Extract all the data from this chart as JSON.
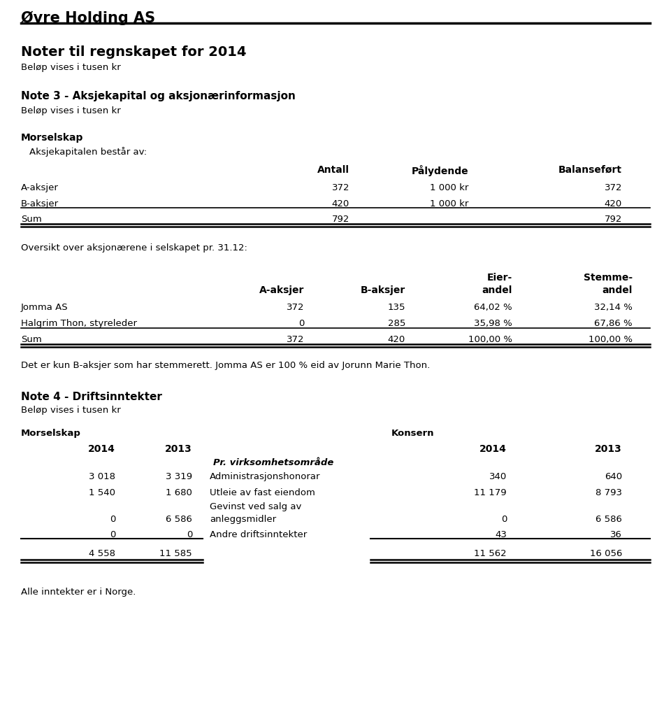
{
  "title": "Øvre Holding AS",
  "subtitle1": "Noter til regnskapet for 2014",
  "subtitle2": "Beløp vises i tusen kr",
  "note3_title": "Note 3 - Aksjekapital og aksjonærinformasjon",
  "note3_subtitle": "Beløp vises i tusen kr",
  "morselskap_label": "Morselskap",
  "aksjekapital_text": "Aksjekapitalen består av:",
  "table1_headers": [
    "",
    "Antall",
    "Pålydende",
    "Balanseført"
  ],
  "table1_rows": [
    [
      "A-aksjer",
      "372",
      "1 000 kr",
      "372"
    ],
    [
      "B-aksjer",
      "420",
      "1 000 kr",
      "420"
    ],
    [
      "Sum",
      "792",
      "",
      "792"
    ]
  ],
  "oversikt_text": "Oversikt over aksjonærene i selskapet pr. 31.12:",
  "table2_headers_line1": [
    "",
    "",
    "",
    "Eier-",
    "Stemme-"
  ],
  "table2_headers_line2": [
    "",
    "A-aksjer",
    "B-aksjer",
    "andel",
    "andel"
  ],
  "table2_rows": [
    [
      "Jomma AS",
      "372",
      "135",
      "64,02 %",
      "32,14 %"
    ],
    [
      "Halgrim Thon, styreleder",
      "0",
      "285",
      "35,98 %",
      "67,86 %"
    ],
    [
      "Sum",
      "372",
      "420",
      "100,00 %",
      "100,00 %"
    ]
  ],
  "stemmerett_text": "Det er kun B-aksjer som har stemmerett. Jomma AS er 100 % eid av Jorunn Marie Thon.",
  "note4_title": "Note 4 - Driftsinntekter",
  "note4_subtitle": "Beløp vises i tusen kr",
  "morselskap_label2": "Morselskap",
  "konsern_label": "Konsern",
  "pr_virksomhet": "Pr. virksomhetsområde",
  "table3_rows": [
    [
      "3 018",
      "3 319",
      "Administrasjonshonorar",
      "340",
      "640"
    ],
    [
      "1 540",
      "1 680",
      "Utleie av fast eiendom",
      "11 179",
      "8 793"
    ],
    [
      "",
      "",
      "Gevinst ved salg av",
      "",
      ""
    ],
    [
      "0",
      "6 586",
      "anleggsmidler",
      "0",
      "6 586"
    ],
    [
      "0",
      "0",
      "Andre driftsinntekter",
      "43",
      "36"
    ],
    [
      "4 558",
      "11 585",
      "",
      "11 562",
      "16 056"
    ]
  ],
  "alle_inntekter": "Alle inntekter er i Norge.",
  "bg_color": "#ffffff",
  "text_color": "#000000"
}
